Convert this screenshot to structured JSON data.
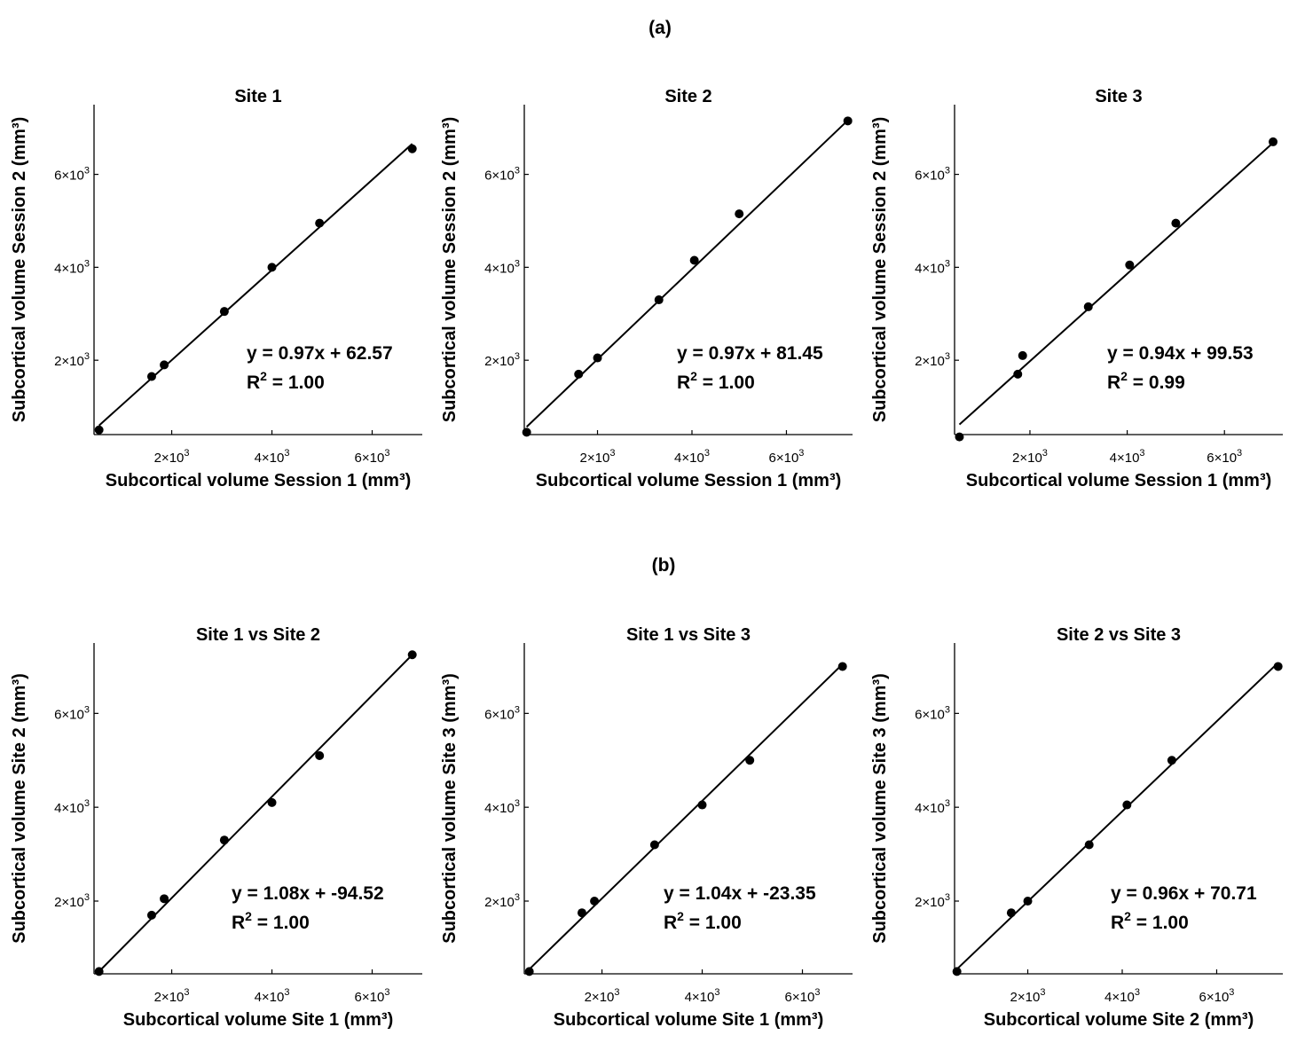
{
  "panels": [
    {
      "label": "(a)"
    },
    {
      "label": "(b)"
    }
  ],
  "chart_data": [
    {
      "type": "scatter",
      "panel": "(a)",
      "title": "Site 1",
      "xlabel": "Subcortical volume Session 1 (mm³)",
      "ylabel": "Subcortical volume Session 2 (mm³)",
      "xlim": [
        450,
        7000
      ],
      "ylim": [
        400,
        7500
      ],
      "xticks": [
        2000,
        4000,
        6000
      ],
      "yticks": [
        2000,
        4000,
        6000
      ],
      "series": [
        {
          "x": [
            550,
            1600,
            1850,
            3050,
            4000,
            4950,
            6800
          ],
          "y": [
            500,
            1650,
            1900,
            3050,
            4000,
            4950,
            6550
          ]
        }
      ],
      "fit": {
        "slope": 0.97,
        "intercept": 62.57
      },
      "annotation": {
        "equation": "y = 0.97x + 62.57",
        "r2_prefix": "R",
        "r2_sup": "2",
        "r2_value": " = 1.00"
      }
    },
    {
      "type": "scatter",
      "panel": "(a)",
      "title": "Site 2",
      "xlabel": "Subcortical volume Session 1 (mm³)",
      "ylabel": "Subcortical volume Session 2 (mm³)",
      "xlim": [
        450,
        7400
      ],
      "ylim": [
        400,
        7500
      ],
      "xticks": [
        2000,
        4000,
        6000
      ],
      "yticks": [
        2000,
        4000,
        6000
      ],
      "series": [
        {
          "x": [
            500,
            1600,
            2000,
            3300,
            4050,
            5000,
            7300
          ],
          "y": [
            450,
            1700,
            2050,
            3300,
            4150,
            5150,
            7150
          ]
        }
      ],
      "fit": {
        "slope": 0.97,
        "intercept": 81.45
      },
      "annotation": {
        "equation": "y = 0.97x + 81.45",
        "r2_prefix": "R",
        "r2_sup": "2",
        "r2_value": " = 1.00"
      }
    },
    {
      "type": "scatter",
      "panel": "(a)",
      "title": "Site 3",
      "xlabel": "Subcortical volume Session 1 (mm³)",
      "ylabel": "Subcortical volume Session 2 (mm³)",
      "xlim": [
        450,
        7200
      ],
      "ylim": [
        400,
        7500
      ],
      "xticks": [
        2000,
        4000,
        6000
      ],
      "yticks": [
        2000,
        4000,
        6000
      ],
      "series": [
        {
          "x": [
            550,
            1750,
            1850,
            3200,
            4050,
            5000,
            7000
          ],
          "y": [
            350,
            1700,
            2100,
            3150,
            4050,
            4950,
            6700
          ]
        }
      ],
      "fit": {
        "slope": 0.94,
        "intercept": 99.53
      },
      "annotation": {
        "equation": "y = 0.94x + 99.53",
        "r2_prefix": "R",
        "r2_sup": "2",
        "r2_value": " = 0.99"
      }
    },
    {
      "type": "scatter",
      "panel": "(b)",
      "title": "Site 1 vs Site 2",
      "xlabel": "Subcortical volume Site 1 (mm³)",
      "ylabel": "Subcortical volume Site 2 (mm³)",
      "xlim": [
        450,
        7000
      ],
      "ylim": [
        450,
        7500
      ],
      "xticks": [
        2000,
        4000,
        6000
      ],
      "yticks": [
        2000,
        4000,
        6000
      ],
      "series": [
        {
          "x": [
            550,
            1600,
            1850,
            3050,
            4000,
            4950,
            6800
          ],
          "y": [
            500,
            1700,
            2050,
            3300,
            4100,
            5100,
            7250
          ]
        }
      ],
      "fit": {
        "slope": 1.08,
        "intercept": -94.52
      },
      "annotation": {
        "equation": "y = 1.08x + -94.52",
        "r2_prefix": "R",
        "r2_sup": "2",
        "r2_value": " = 1.00"
      }
    },
    {
      "type": "scatter",
      "panel": "(b)",
      "title": "Site 1 vs Site 3",
      "xlabel": "Subcortical volume Site 1 (mm³)",
      "ylabel": "Subcortical volume Site 3 (mm³)",
      "xlim": [
        450,
        7000
      ],
      "ylim": [
        450,
        7500
      ],
      "xticks": [
        2000,
        4000,
        6000
      ],
      "yticks": [
        2000,
        4000,
        6000
      ],
      "series": [
        {
          "x": [
            550,
            1600,
            1850,
            3050,
            4000,
            4950,
            6800
          ],
          "y": [
            500,
            1750,
            2000,
            3200,
            4050,
            5000,
            7000
          ]
        }
      ],
      "fit": {
        "slope": 1.04,
        "intercept": -23.35
      },
      "annotation": {
        "equation": "y = 1.04x + -23.35",
        "r2_prefix": "R",
        "r2_sup": "2",
        "r2_value": " = 1.00"
      }
    },
    {
      "type": "scatter",
      "panel": "(b)",
      "title": "Site 2 vs Site 3",
      "xlabel": "Subcortical volume Site 2 (mm³)",
      "ylabel": "Subcortical volume Site 3 (mm³)",
      "xlim": [
        450,
        7400
      ],
      "ylim": [
        450,
        7500
      ],
      "xticks": [
        2000,
        4000,
        6000
      ],
      "yticks": [
        2000,
        4000,
        6000
      ],
      "series": [
        {
          "x": [
            500,
            1650,
            2000,
            3300,
            4100,
            5050,
            7300
          ],
          "y": [
            500,
            1750,
            2000,
            3200,
            4050,
            5000,
            7000
          ]
        }
      ],
      "fit": {
        "slope": 0.96,
        "intercept": 70.71
      },
      "annotation": {
        "equation": "y = 0.96x + 70.71",
        "r2_prefix": "R",
        "r2_sup": "2",
        "r2_value": " = 1.00"
      }
    }
  ]
}
